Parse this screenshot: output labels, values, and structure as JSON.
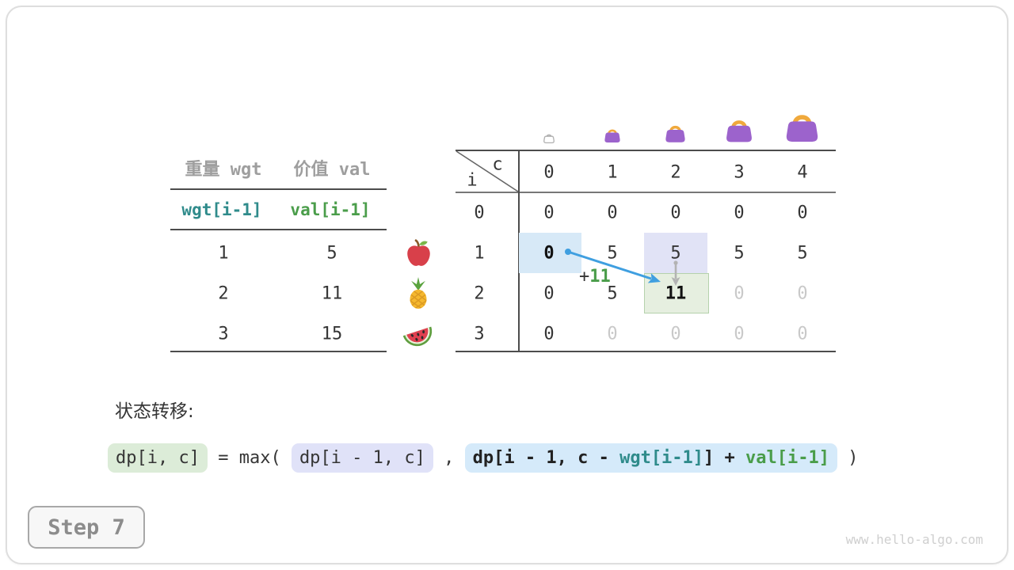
{
  "page": {
    "watermark": "www.hello-algo.com",
    "step_badge": "Step 7"
  },
  "items_table": {
    "col_headers": [
      "重量 wgt",
      "价值 val"
    ],
    "index_headers": [
      {
        "text": "wgt[i-1]",
        "color": "teal"
      },
      {
        "text": "val[i-1]",
        "color": "green"
      }
    ],
    "rows": [
      [
        "1",
        "5"
      ],
      [
        "2",
        "11"
      ],
      [
        "3",
        "15"
      ]
    ],
    "row_icons": [
      "apple-icon",
      "pineapple-icon",
      "watermelon-icon"
    ]
  },
  "dp_table": {
    "corner_col_label": "c",
    "corner_row_label": "i",
    "col_headers": [
      "0",
      "1",
      "2",
      "3",
      "4"
    ],
    "row_headers": [
      "0",
      "1",
      "2",
      "3"
    ],
    "capacity_icons": [
      "bag-empty-icon",
      "bag-size-1-icon",
      "bag-size-2-icon",
      "bag-size-3-icon",
      "bag-size-4-icon"
    ],
    "cells": [
      [
        {
          "v": "0"
        },
        {
          "v": "0"
        },
        {
          "v": "0"
        },
        {
          "v": "0"
        },
        {
          "v": "0"
        }
      ],
      [
        {
          "v": "0",
          "bold": true,
          "hl": "blue"
        },
        {
          "v": "5"
        },
        {
          "v": "5",
          "hl": "lavender"
        },
        {
          "v": "5"
        },
        {
          "v": "5"
        }
      ],
      [
        {
          "v": "0"
        },
        {
          "v": "5"
        },
        {
          "v": "11",
          "bold": true,
          "hl": "green"
        },
        {
          "v": "0",
          "dim": true
        },
        {
          "v": "0",
          "dim": true
        }
      ],
      [
        {
          "v": "0"
        },
        {
          "v": "0",
          "dim": true
        },
        {
          "v": "0",
          "dim": true
        },
        {
          "v": "0",
          "dim": true
        },
        {
          "v": "0",
          "dim": true
        }
      ]
    ],
    "annotation_plus": "+",
    "annotation_value": "11"
  },
  "transition": {
    "label": "状态转移:",
    "formula": [
      {
        "box": "green",
        "bold": false,
        "parts": [
          {
            "t": "dp[i, c]",
            "c": "dark"
          }
        ]
      },
      {
        "box": null,
        "bold": false,
        "parts": [
          {
            "t": " = max( ",
            "c": "dark"
          }
        ]
      },
      {
        "box": "lavender",
        "bold": false,
        "parts": [
          {
            "t": "dp[i - 1, c]",
            "c": "dark"
          }
        ]
      },
      {
        "box": null,
        "bold": false,
        "parts": [
          {
            "t": " , ",
            "c": "dark"
          }
        ]
      },
      {
        "box": "blue",
        "bold": true,
        "parts": [
          {
            "t": "dp[i - 1, c - ",
            "c": "dark"
          },
          {
            "t": "wgt[i-1]",
            "c": "teal"
          },
          {
            "t": "] + ",
            "c": "dark"
          },
          {
            "t": "val[i-1]",
            "c": "green"
          }
        ]
      },
      {
        "box": null,
        "bold": false,
        "parts": [
          {
            "t": " )",
            "c": "dark"
          }
        ]
      }
    ]
  },
  "colors": {
    "text-dark": "#353535",
    "text-black": "#111111",
    "text-gray": "#9e9e9e",
    "text-dim": "#c9c9c9",
    "code-teal": "#2f8b8b",
    "code-green": "#4a9d4a",
    "arrow-blue": "#3f9fe0",
    "arrow-gray": "#b3b3b3",
    "cell-blue": "#d7e9f7",
    "cell-lavender": "#e1e3f6",
    "cell-green": "#e6efe0",
    "cell-green-border": "#b5d2ac",
    "box-green": "#dcecd8",
    "box-lavender": "#e0e2f8",
    "box-blue": "#d5eafa",
    "bag-purple": "#9c63cc",
    "bag-handle": "#f0a93c",
    "bag-outline": "#b0b0b0",
    "line-dark": "#4c4c4c",
    "line-mid": "#777777",
    "badge-border": "#a8a8a8",
    "badge-bg": "#f7f7f7",
    "badge-text": "#8c8c8c",
    "card-border": "#dedede",
    "apple-red": "#d8404a",
    "leaf-green": "#7ab648",
    "stem-brown": "#8a5a2a",
    "pineapple-yellow": "#f5b82e",
    "pineapple-line": "#dc9a22",
    "crown-green": "#5aa33e",
    "melon-rind": "#5f9e3f",
    "melon-inner": "#e9f2da",
    "melon-flesh": "#e04050",
    "seed-dark": "#2a2a2a"
  }
}
